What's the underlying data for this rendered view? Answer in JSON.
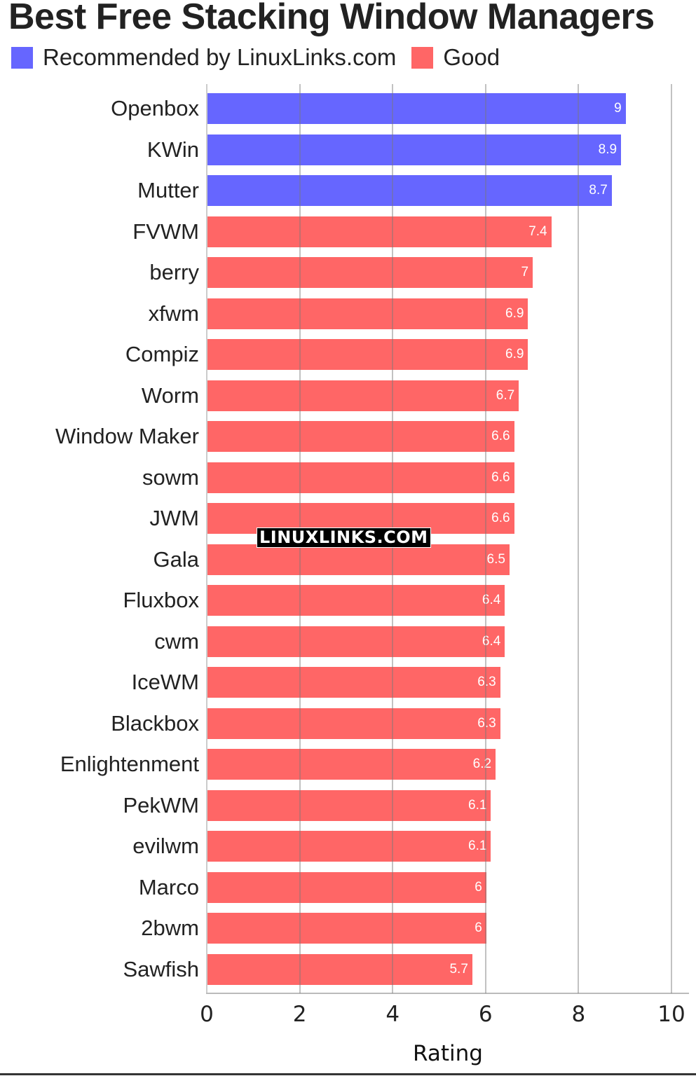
{
  "title": "Best Free Stacking Window Managers",
  "legend": [
    {
      "label": "Recommended by LinuxLinks.com",
      "color": "#6666FF"
    },
    {
      "label": "Good",
      "color": "#FF6666"
    }
  ],
  "watermark": "LINUXLINKS.COM",
  "chart_data": {
    "type": "bar",
    "orientation": "horizontal",
    "title": "Best Free Stacking Window Managers",
    "xlabel": "Rating",
    "ylabel": "",
    "xlim": [
      0,
      10
    ],
    "x_ticks": [
      "0",
      "2",
      "4",
      "6",
      "8",
      "10"
    ],
    "grid": true,
    "legend_position": "top-left",
    "categories": [
      "Openbox",
      "KWin",
      "Mutter",
      "FVWM",
      "berry",
      "xfwm",
      "Compiz",
      "Worm",
      "Window Maker",
      "sowm",
      "JWM",
      "Gala",
      "Fluxbox",
      "cwm",
      "IceWM",
      "Blackbox",
      "Enlightenment",
      "PekWM",
      "evilwm",
      "Marco",
      "2bwm",
      "Sawfish"
    ],
    "values": [
      9,
      8.9,
      8.7,
      7.4,
      7,
      6.9,
      6.9,
      6.7,
      6.6,
      6.6,
      6.6,
      6.5,
      6.4,
      6.4,
      6.3,
      6.3,
      6.2,
      6.1,
      6.1,
      6,
      6,
      5.7
    ],
    "series_membership": [
      "Recommended by LinuxLinks.com",
      "Recommended by LinuxLinks.com",
      "Recommended by LinuxLinks.com",
      "Good",
      "Good",
      "Good",
      "Good",
      "Good",
      "Good",
      "Good",
      "Good",
      "Good",
      "Good",
      "Good",
      "Good",
      "Good",
      "Good",
      "Good",
      "Good",
      "Good",
      "Good",
      "Good"
    ],
    "series": [
      {
        "name": "Recommended by LinuxLinks.com",
        "color": "#6666FF",
        "categories": [
          "Openbox",
          "KWin",
          "Mutter"
        ],
        "values": [
          9,
          8.9,
          8.7
        ]
      },
      {
        "name": "Good",
        "color": "#FF6666",
        "categories": [
          "FVWM",
          "berry",
          "xfwm",
          "Compiz",
          "Worm",
          "Window Maker",
          "sowm",
          "JWM",
          "Gala",
          "Fluxbox",
          "cwm",
          "IceWM",
          "Blackbox",
          "Enlightenment",
          "PekWM",
          "evilwm",
          "Marco",
          "2bwm",
          "Sawfish"
        ],
        "values": [
          7.4,
          7,
          6.9,
          6.9,
          6.7,
          6.6,
          6.6,
          6.6,
          6.5,
          6.4,
          6.4,
          6.3,
          6.3,
          6.2,
          6.1,
          6.1,
          6,
          6,
          5.7
        ]
      }
    ]
  }
}
